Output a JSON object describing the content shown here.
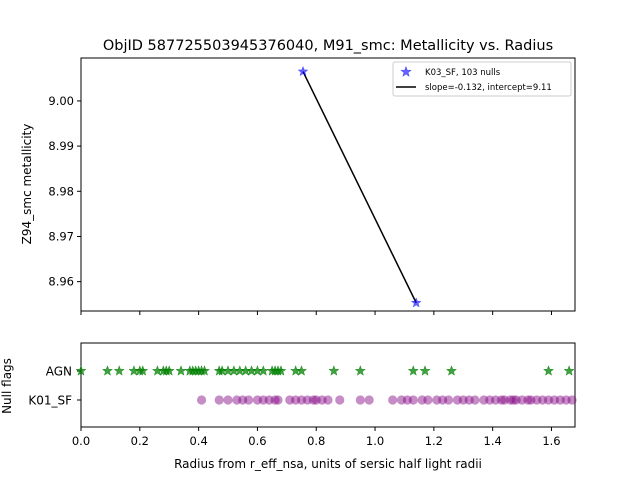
{
  "title": "ObjID 587725503945376040, M91_smc: Metallicity vs. Radius",
  "chart_data": [
    {
      "type": "scatter",
      "title": "ObjID 587725503945376040, M91_smc: Metallicity vs. Radius",
      "ylabel": "Z94_smc metallicity",
      "xlim": [
        0.0,
        1.68
      ],
      "ylim": [
        8.9535,
        9.0095
      ],
      "yticks": [
        "8.96",
        "8.97",
        "8.98",
        "8.99",
        "9.00"
      ],
      "legend_position": "top-right",
      "series": [
        {
          "name": "K03_SF, 103 nulls",
          "color": "#0000ff",
          "marker": "star",
          "x": [
            0.755,
            1.14
          ],
          "y": [
            9.0065,
            8.9553
          ]
        }
      ],
      "fit_line": {
        "name": "slope=-0.132, intercept=9.11",
        "color": "#000000",
        "x": [
          0.755,
          1.14
        ],
        "y": [
          9.0065,
          8.9553
        ]
      }
    },
    {
      "type": "scatter",
      "ylabel": "Null flags",
      "xlabel": "Radius from r_eff_nsa, units of sersic half light radii",
      "xlim": [
        0.0,
        1.68
      ],
      "xticks": [
        "0.0",
        "0.2",
        "0.4",
        "0.6",
        "0.8",
        "1.0",
        "1.2",
        "1.4",
        "1.6"
      ],
      "categories": [
        "AGN",
        "K01_SF"
      ],
      "series": [
        {
          "name": "AGN",
          "color": "#008000",
          "marker": "star",
          "x": [
            0.0,
            0.09,
            0.13,
            0.18,
            0.2,
            0.21,
            0.26,
            0.28,
            0.29,
            0.3,
            0.34,
            0.37,
            0.38,
            0.39,
            0.4,
            0.41,
            0.42,
            0.47,
            0.48,
            0.5,
            0.52,
            0.54,
            0.56,
            0.58,
            0.6,
            0.62,
            0.65,
            0.66,
            0.67,
            0.68,
            0.73,
            0.75,
            0.86,
            0.95,
            1.13,
            1.17,
            1.26,
            1.59,
            1.66
          ]
        },
        {
          "name": "K01_SF",
          "color": "#800080",
          "marker": "circle",
          "x": [
            0.41,
            0.47,
            0.5,
            0.53,
            0.55,
            0.57,
            0.6,
            0.62,
            0.64,
            0.66,
            0.67,
            0.71,
            0.73,
            0.75,
            0.77,
            0.79,
            0.8,
            0.82,
            0.84,
            0.88,
            0.95,
            0.98,
            1.06,
            1.09,
            1.11,
            1.13,
            1.16,
            1.18,
            1.21,
            1.23,
            1.25,
            1.28,
            1.3,
            1.32,
            1.34,
            1.37,
            1.39,
            1.41,
            1.43,
            1.44,
            1.46,
            1.47,
            1.48,
            1.5,
            1.52,
            1.53,
            1.55,
            1.57,
            1.59,
            1.61,
            1.63,
            1.65,
            1.67
          ]
        }
      ]
    }
  ]
}
